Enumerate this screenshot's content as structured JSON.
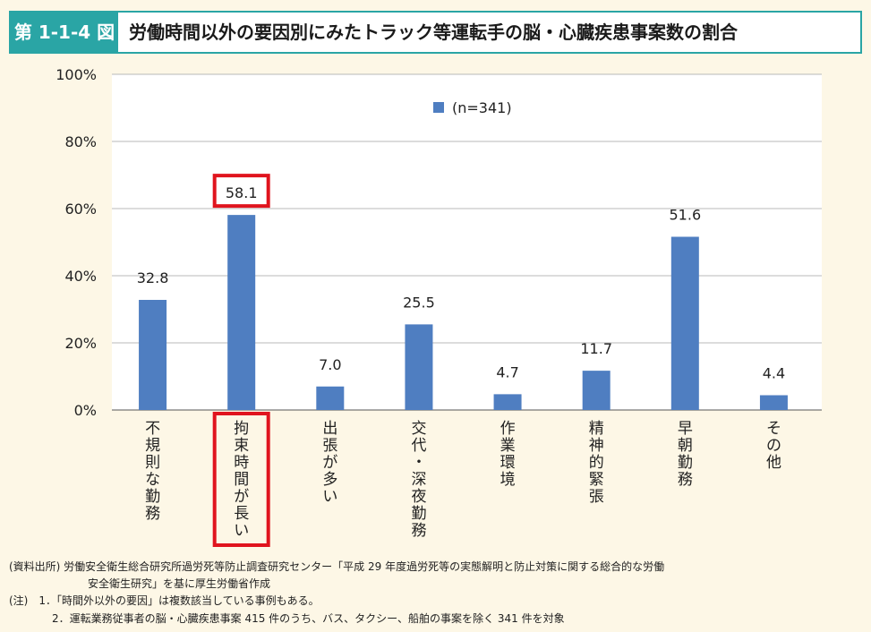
{
  "header": {
    "figure_label": "第 1-1-4 図",
    "title": "労働時間以外の要因別にみたトラック等運転手の脳・心臓疾患事案数の割合"
  },
  "chart_data": {
    "type": "bar",
    "title": "",
    "xlabel": "",
    "ylabel": "",
    "ylim": [
      0,
      100
    ],
    "yticks": [
      "0%",
      "20%",
      "40%",
      "60%",
      "80%",
      "100%"
    ],
    "grid": true,
    "legend_position": "top-center",
    "categories": [
      "不規則な勤務",
      "拘束時間が長い",
      "出張が多い",
      "交代・深夜勤務",
      "作業環境",
      "精神的緊張",
      "早朝勤務",
      "その他"
    ],
    "series": [
      {
        "name": "(n=341)",
        "values": [
          32.8,
          58.1,
          7.0,
          25.5,
          4.7,
          11.7,
          51.6,
          4.4
        ],
        "labels": [
          "32.8",
          "58.1",
          "7.0",
          "25.5",
          "4.7",
          "11.7",
          "51.6",
          "4.4"
        ],
        "color": "#4f7ec1"
      }
    ],
    "highlight_index": 1,
    "highlight_color": "#e0141e"
  },
  "notes": {
    "source_line1": "(資料出所) 労働安全衛生総合研究所過労死等防止調査研究センター「平成 29 年度過労死等の実態解明と防止対策に関する総合的な労働",
    "source_line2": "安全衛生研究」を基に厚生労働省作成",
    "note_line1": "(注)　1．「時間外以外の要因」は複数該当している事例もある。",
    "note_line2": "2．運転業務従事者の脳・心臓疾患事案 415 件のうち、バス、タクシー、船舶の事案を除く 341 件を対象"
  }
}
